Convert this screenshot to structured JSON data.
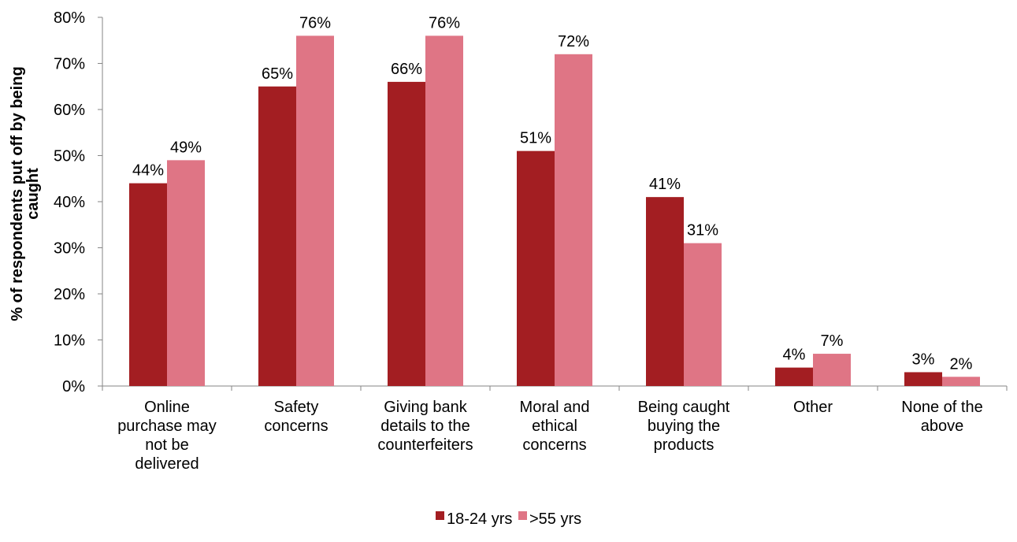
{
  "chart_data": {
    "type": "bar",
    "ylabel_lines": [
      "% of respondents put off by being",
      "caught"
    ],
    "ylim": [
      0,
      80
    ],
    "yticks": [
      0,
      10,
      20,
      30,
      40,
      50,
      60,
      70,
      80
    ],
    "ytick_labels": [
      "0%",
      "10%",
      "20%",
      "30%",
      "40%",
      "50%",
      "60%",
      "70%",
      "80%"
    ],
    "categories": [
      "Online purchase may not be delivered",
      "Safety concerns",
      "Giving bank details to the counterfeiters",
      "Moral and ethical concerns",
      "Being caught buying the products",
      "Other",
      "None of the above"
    ],
    "category_label_lines": [
      [
        "Online",
        "purchase may",
        "not be",
        "delivered"
      ],
      [
        "Safety",
        "concerns"
      ],
      [
        "Giving bank",
        "details to the",
        "counterfeiters"
      ],
      [
        "Moral and",
        "ethical",
        "concerns"
      ],
      [
        "Being caught",
        "buying the",
        "products"
      ],
      [
        "Other"
      ],
      [
        "None of the",
        "above"
      ]
    ],
    "series": [
      {
        "name": "18-24 yrs",
        "color": "#a31e22",
        "values": [
          44,
          65,
          66,
          51,
          41,
          4,
          3
        ],
        "labels": [
          "44%",
          "65%",
          "66%",
          "51%",
          "41%",
          "4%",
          "3%"
        ]
      },
      {
        "name": ">55 yrs",
        "color": "#df7585",
        "values": [
          49,
          76,
          76,
          72,
          31,
          7,
          2
        ],
        "labels": [
          "49%",
          "76%",
          "76%",
          "72%",
          "31%",
          "7%",
          "2%"
        ]
      }
    ],
    "legend_position": "bottom",
    "grid": false
  }
}
